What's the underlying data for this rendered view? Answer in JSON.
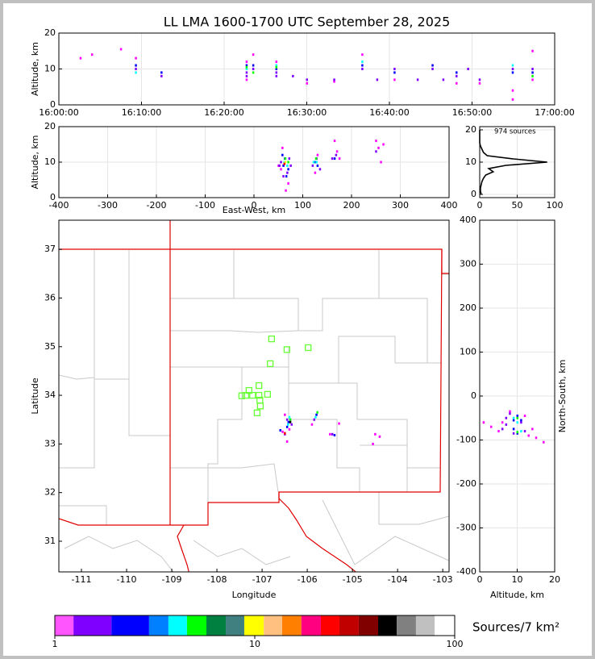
{
  "chart_data": [
    {
      "type": "scatter",
      "title": "LL LMA 1600-1700 UTC September 28, 2025",
      "ylabel": "Altitude, km",
      "xlim": [
        0,
        60
      ],
      "xticks": [
        {
          "value": 0,
          "label": "16:00:00"
        },
        {
          "value": 10,
          "label": "16:10:00"
        },
        {
          "value": 20,
          "label": "16:20:00"
        },
        {
          "value": 30,
          "label": "16:30:00"
        },
        {
          "value": 40,
          "label": "16:40:00"
        },
        {
          "value": 50,
          "label": "16:50:00"
        },
        {
          "value": 60,
          "label": "17:00:00"
        }
      ],
      "ylim": [
        0,
        20
      ],
      "yticks": [
        0,
        10,
        20
      ],
      "grid": true,
      "series": [
        {
          "color": "#ff00ff",
          "x": [
            22.7,
            22.7,
            23.5,
            26.3,
            36.7,
            40.6,
            48.1,
            54.9,
            54.9,
            57.3,
            57.3,
            9.3,
            2.6,
            7.5,
            4,
            30,
            33.3,
            50.9
          ],
          "y": [
            7,
            12,
            14,
            12,
            14,
            7,
            6,
            4,
            1.5,
            7,
            15,
            13,
            13,
            15.5,
            14,
            6,
            6.5,
            6
          ]
        },
        {
          "color": "#8000ff",
          "x": [
            9.3,
            12.4,
            22.7,
            23.5,
            26.3,
            28.3,
            30,
            33.3,
            36.7,
            38.5,
            40.6,
            43.4,
            45.2,
            46.5,
            49.5,
            50.9,
            54.9,
            57.3,
            22.7,
            26.3,
            48.1
          ],
          "y": [
            10,
            8,
            9,
            10,
            9,
            8,
            7,
            7,
            10,
            7,
            10,
            7,
            10,
            7,
            10,
            7,
            10,
            10,
            8,
            8,
            8
          ]
        },
        {
          "color": "#0000ff",
          "x": [
            9.3,
            22.7,
            23.5,
            26.3,
            36.7,
            40.6,
            48.1,
            54.9,
            57.3,
            12.4,
            45.2
          ],
          "y": [
            11,
            11,
            11,
            10,
            11,
            9,
            9,
            9,
            9,
            9,
            11
          ]
        },
        {
          "color": "#00ffff",
          "x": [
            22.7,
            26.3,
            36.7,
            54.9,
            9.3
          ],
          "y": [
            10,
            11,
            12,
            11,
            9
          ]
        },
        {
          "color": "#00ff00",
          "x": [
            23.5,
            26.3,
            57.3,
            22.7
          ],
          "y": [
            9,
            10.5,
            8,
            10.5
          ]
        }
      ]
    },
    {
      "type": "scatter",
      "xlabel": "East-West, km",
      "ylabel": "Altitude, km",
      "xlim": [
        -400,
        400
      ],
      "xticks": [
        -400,
        -300,
        -200,
        -100,
        0,
        100,
        200,
        300,
        400
      ],
      "ylim": [
        0,
        20
      ],
      "yticks": [
        0,
        10,
        20
      ],
      "grid": true,
      "series": [
        {
          "color": "#ff00ff",
          "x": [
            55,
            58,
            70,
            65,
            125,
            130,
            165,
            170,
            250,
            255,
            260,
            265,
            175,
            50
          ],
          "y": [
            8,
            14,
            4,
            2,
            7,
            12,
            16,
            13,
            16,
            14,
            10,
            15,
            11,
            9
          ]
        },
        {
          "color": "#8000ff",
          "x": [
            55,
            60,
            72,
            68,
            120,
            128,
            135,
            160,
            168,
            250,
            52,
            75
          ],
          "y": [
            10,
            6,
            11,
            7,
            9,
            11,
            8,
            11,
            12,
            13,
            9,
            9
          ]
        },
        {
          "color": "#0000ff",
          "x": [
            60,
            63,
            66,
            70,
            125,
            130,
            165,
            58
          ],
          "y": [
            9,
            11,
            6,
            8,
            10,
            9,
            11,
            12
          ]
        },
        {
          "color": "#00ffff",
          "x": [
            62,
            68,
            122,
            128
          ],
          "y": [
            10,
            9,
            10,
            10
          ]
        },
        {
          "color": "#00ff00",
          "x": [
            64,
            70,
            127
          ],
          "y": [
            11,
            10,
            11
          ]
        },
        {
          "color": "#ffff00",
          "x": [
            64
          ],
          "y": [
            10
          ]
        },
        {
          "color": "#ff0000",
          "x": [
            62
          ],
          "y": [
            9.5
          ]
        }
      ]
    },
    {
      "type": "line",
      "annotation": "974 sources",
      "xlim": [
        0,
        100
      ],
      "xticks": [
        0,
        50,
        100
      ],
      "ylim": [
        -1,
        21
      ],
      "yticks": [
        0,
        10,
        20
      ],
      "grid": true,
      "series": [
        {
          "color": "#000000",
          "x": [
            2,
            1,
            1,
            2,
            3,
            5,
            8,
            18,
            12,
            35,
            90,
            45,
            10,
            5,
            3,
            1,
            0,
            0,
            0,
            0,
            0
          ],
          "y": [
            0,
            1,
            2,
            3,
            4,
            5,
            6,
            7,
            8,
            9,
            10,
            11,
            12,
            13,
            14,
            15,
            16,
            17,
            18,
            19,
            20
          ]
        }
      ]
    },
    {
      "type": "scatter",
      "xlabel": "Longitude",
      "ylabel": "Latitude",
      "xlim": [
        -111.5,
        -102.86
      ],
      "xticks": [
        -111,
        -110,
        -109,
        -108,
        -107,
        -106,
        -105,
        -104,
        -103
      ],
      "ylim": [
        30.37,
        37.6
      ],
      "yticks": [
        31,
        32,
        33,
        34,
        35,
        36,
        37
      ],
      "grid": false,
      "series": [
        {
          "color": "#ff00ff",
          "x": [
            -106.5,
            -106.4,
            -105.9,
            -104.5,
            -104.4,
            -105.5,
            -106.55,
            -105.3,
            -104.55,
            -106.45
          ],
          "y": [
            33.6,
            33.3,
            33.4,
            33.2,
            33.15,
            33.2,
            33.25,
            33.42,
            33.0,
            33.05
          ]
        },
        {
          "color": "#8000ff",
          "x": [
            -106.45,
            -105.85,
            -105.45,
            -106.5,
            -106.35
          ],
          "y": [
            33.5,
            33.5,
            33.2,
            33.2,
            33.4
          ]
        },
        {
          "color": "#0000ff",
          "x": [
            -106.42,
            -105.8,
            -106.45,
            -105.4,
            -106.6
          ],
          "y": [
            33.45,
            33.6,
            33.35,
            33.18,
            33.28
          ]
        },
        {
          "color": "#00ffff",
          "x": [
            -106.4,
            -105.82,
            -106.43
          ],
          "y": [
            33.55,
            33.55,
            33.4
          ]
        },
        {
          "color": "#00ff00",
          "x": [
            -106.38,
            -105.78
          ],
          "y": [
            33.5,
            33.65
          ]
        },
        {
          "color": "#ff0000",
          "x": [
            -106.5
          ],
          "y": [
            33.22
          ]
        },
        {
          "color": "#000000",
          "x": [
            -106.38
          ],
          "y": [
            33.45
          ]
        },
        {
          "color": "#66ff33",
          "marker": "square",
          "x": [
            -106.79,
            -106.45,
            -105.98,
            -106.82,
            -107.07,
            -107.29,
            -107.36,
            -107.21,
            -107.07,
            -106.88,
            -107.05,
            -107.04,
            -107.11,
            -107.45
          ],
          "y": [
            35.16,
            34.94,
            34.98,
            34.65,
            34.2,
            34.1,
            34.0,
            34.0,
            34.0,
            34.02,
            33.9,
            33.78,
            33.64,
            33.99
          ]
        }
      ]
    },
    {
      "type": "scatter",
      "xlabel": "Altitude, km",
      "ylabel": "North-South, km",
      "xlim": [
        0,
        20
      ],
      "xticks": [
        0,
        10,
        20
      ],
      "ylim": [
        -400,
        400
      ],
      "yticks": [
        -400,
        -300,
        -200,
        -100,
        0,
        100,
        200,
        300,
        400
      ],
      "grid": true,
      "series": [
        {
          "color": "#ff00ff",
          "x": [
            3,
            5,
            6,
            13,
            15,
            17,
            12,
            8,
            1,
            14
          ],
          "y": [
            -70,
            -80,
            -60,
            -90,
            -95,
            -105,
            -45,
            -35,
            -60,
            -75
          ]
        },
        {
          "color": "#8000ff",
          "x": [
            6,
            7,
            9,
            11,
            12,
            8,
            7
          ],
          "y": [
            -75,
            -50,
            -85,
            -60,
            -80,
            -40,
            -65
          ]
        },
        {
          "color": "#0000ff",
          "x": [
            9,
            10,
            10,
            11,
            9
          ],
          "y": [
            -55,
            -45,
            -85,
            -55,
            -75
          ]
        },
        {
          "color": "#00ffff",
          "x": [
            9,
            10,
            11
          ],
          "y": [
            -50,
            -60,
            -80
          ]
        },
        {
          "color": "#00ff00",
          "x": [
            10,
            10
          ],
          "y": [
            -50,
            -82
          ]
        }
      ]
    },
    {
      "type": "colorbar",
      "label": "Sources/7 km²",
      "log": true,
      "xlim": [
        1,
        100
      ],
      "xticks": [
        1,
        10,
        100
      ],
      "bounds": [
        1,
        1.24,
        1.92,
        2.96,
        3.7,
        4.58,
        5.73,
        7.16,
        8.86,
        11.1,
        13.7,
        17.1,
        21.4,
        26.5,
        33.1,
        41.4,
        51.3,
        64,
        79.4,
        100
      ],
      "colors": [
        "#ff55ff",
        "#8000ff",
        "#0000ff",
        "#0080ff",
        "#00ffff",
        "#00ff00",
        "#008040",
        "#408080",
        "#ffff00",
        "#ffc080",
        "#ff8000",
        "#ff0080",
        "#ff0000",
        "#c00000",
        "#800000",
        "#000000",
        "#808080",
        "#c0c0c0",
        "#ffffff"
      ]
    }
  ]
}
